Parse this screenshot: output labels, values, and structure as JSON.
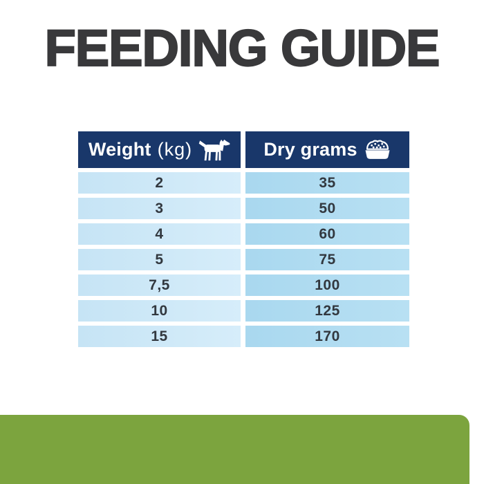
{
  "title": "FEEDING GUIDE",
  "table": {
    "header": {
      "weight_label": "Weight",
      "weight_unit": "(kg)",
      "weight_icon": "dog-icon",
      "dry_label": "Dry grams",
      "dry_icon": "bowl-icon"
    },
    "rows": [
      {
        "weight": "2",
        "grams": "35"
      },
      {
        "weight": "3",
        "grams": "50"
      },
      {
        "weight": "4",
        "grams": "60"
      },
      {
        "weight": "5",
        "grams": "75"
      },
      {
        "weight": "7,5",
        "grams": "100"
      },
      {
        "weight": "10",
        "grams": "125"
      },
      {
        "weight": "15",
        "grams": "170"
      }
    ]
  },
  "colors": {
    "header_navy": "#19376a",
    "row_left_blue": "#cde9f8",
    "row_right_blue": "#b3dcf1",
    "title_charcoal": "#39393b",
    "number_text": "#32383f",
    "footer_green": "#7ca43e",
    "background": "#ffffff"
  },
  "chart_data": {
    "type": "table",
    "title": "FEEDING GUIDE",
    "columns": [
      "Weight (kg)",
      "Dry grams"
    ],
    "rows": [
      [
        "2",
        "35"
      ],
      [
        "3",
        "50"
      ],
      [
        "4",
        "60"
      ],
      [
        "5",
        "75"
      ],
      [
        "7,5",
        "100"
      ],
      [
        "10",
        "125"
      ],
      [
        "15",
        "170"
      ]
    ],
    "layout_hints": {
      "header_style": "navy background, white bold text, icons at right of labels",
      "body_style": "light blue cells separated by white gutters, centered bold values",
      "decimal_separator": "comma"
    }
  }
}
